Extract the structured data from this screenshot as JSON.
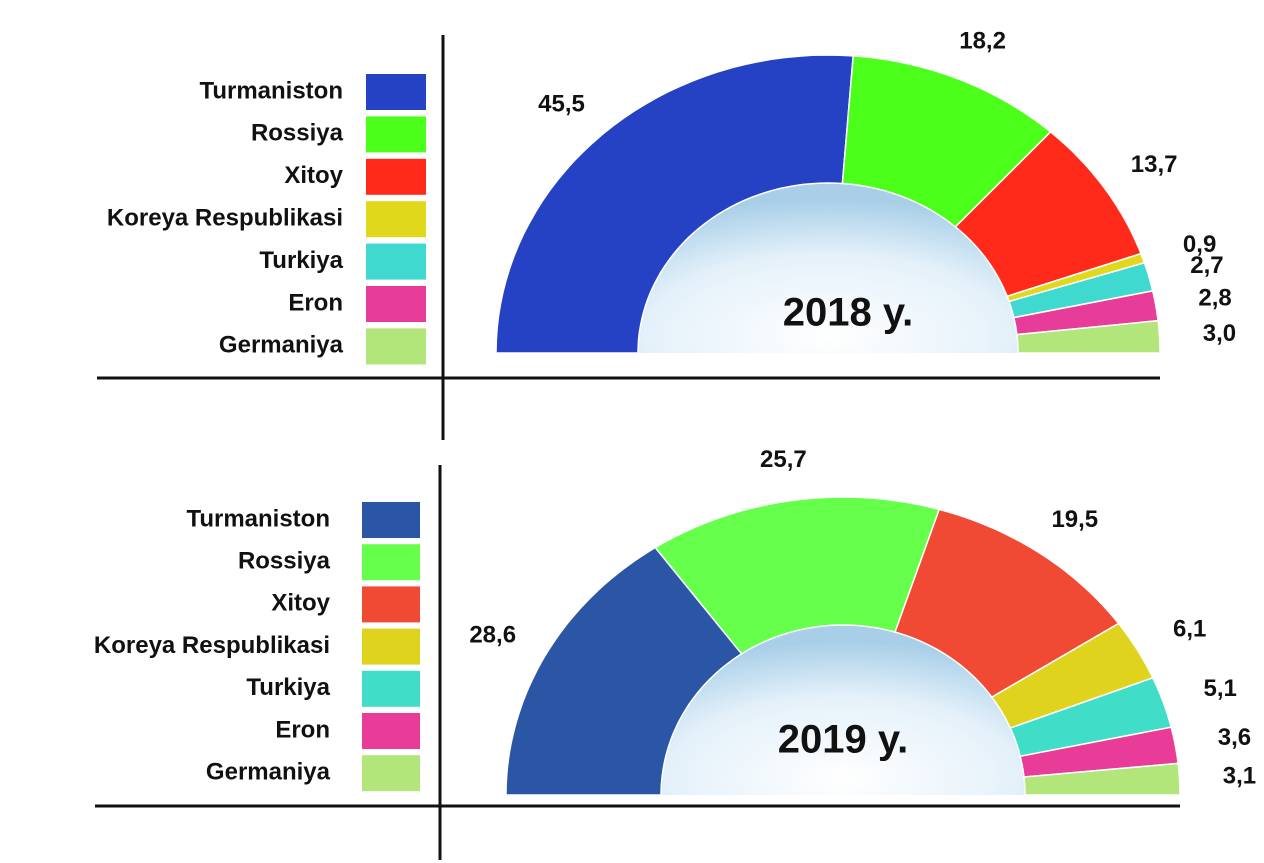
{
  "chart_data": [
    {
      "type": "pie",
      "title": "2018 y.",
      "categories": [
        "Turmaniston",
        "Rossiya",
        "Xitoy",
        "Koreya Respublikasi",
        "Turkiya",
        "Eron",
        "Germaniya"
      ],
      "values": [
        45.5,
        18.2,
        13.7,
        0.9,
        2.7,
        2.8,
        3.0
      ],
      "value_labels": [
        "45,5",
        "18,2",
        "13,7",
        "0,9",
        "2,7",
        "2,8",
        "3,0"
      ],
      "colors": [
        "#2541c4",
        "#4cff1a",
        "#ff2a1a",
        "#e0d81a",
        "#3fd9cf",
        "#e83c9a",
        "#b2e57a"
      ]
    },
    {
      "type": "pie",
      "title": "2019 y.",
      "categories": [
        "Turmaniston",
        "Rossiya",
        "Xitoy",
        "Koreya Respublikasi",
        "Turkiya",
        "Eron",
        "Germaniya"
      ],
      "values": [
        28.6,
        25.7,
        19.5,
        6.1,
        5.1,
        3.6,
        3.1
      ],
      "value_labels": [
        "28,6",
        "25,7",
        "19,5",
        "6,1",
        "5,1",
        "3,6",
        "3,1"
      ],
      "colors": [
        "#2b55a5",
        "#66ff4c",
        "#f04a35",
        "#e0d31e",
        "#40ddc9",
        "#e83c98",
        "#b2e57a"
      ]
    }
  ]
}
